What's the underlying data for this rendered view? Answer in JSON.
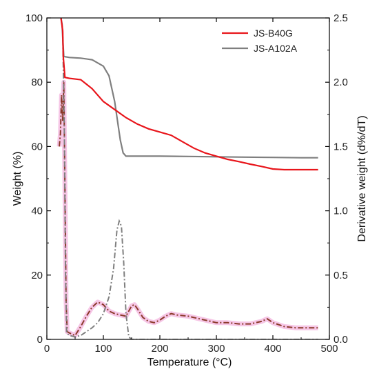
{
  "chart_data": {
    "type": "line",
    "title": "",
    "xlabel": "Temperature (°C)",
    "ylabel": "Weight (%)",
    "y2label": "Derivative weight (d%/dT)",
    "xlim": [
      0,
      500
    ],
    "ylim": [
      0,
      100
    ],
    "y2lim": [
      0,
      2.5
    ],
    "xticks": [
      "0",
      "100",
      "200",
      "300",
      "400",
      "500"
    ],
    "yticks": [
      "0",
      "20",
      "40",
      "60",
      "80",
      "100"
    ],
    "y2ticks": [
      "0.0",
      "0.5",
      "1.0",
      "1.5",
      "2.0",
      "2.5"
    ],
    "grid": false,
    "legend": "top-right",
    "series": [
      {
        "name": "JS-B40G",
        "axis": "left",
        "style": "solid",
        "color": "#e8151b",
        "x": [
          25,
          28,
          29,
          32,
          40,
          60,
          80,
          100,
          120,
          140,
          160,
          180,
          200,
          220,
          240,
          260,
          280,
          300,
          320,
          340,
          360,
          380,
          400,
          420,
          440,
          460,
          480
        ],
        "y": [
          100,
          96,
          88,
          81.5,
          81.2,
          80.8,
          78,
          74,
          71.5,
          69,
          67,
          65.5,
          64.5,
          63.5,
          61.5,
          59.5,
          58,
          57,
          56,
          55.3,
          54.5,
          53.8,
          53,
          52.8,
          52.8,
          52.8,
          52.8
        ]
      },
      {
        "name": "JS-A102A",
        "axis": "left",
        "style": "solid",
        "color": "#7f7f7f",
        "x": [
          25,
          27,
          28,
          30,
          40,
          60,
          80,
          100,
          110,
          120,
          125,
          130,
          135,
          140,
          145,
          160,
          200,
          250,
          300,
          350,
          400,
          450,
          480
        ],
        "y": [
          100,
          98,
          94,
          88,
          87.7,
          87.5,
          87,
          85,
          82,
          74,
          68,
          62,
          58,
          57,
          57,
          57,
          57,
          56.9,
          56.8,
          56.7,
          56.6,
          56.5,
          56.5
        ],
        "deriv_x": [
          25,
          28,
          31,
          33,
          35,
          40,
          50,
          60,
          70,
          80,
          90,
          100,
          110,
          118,
          124,
          128,
          132,
          136,
          140,
          145,
          150,
          200,
          300,
          400,
          480
        ],
        "deriv_y": [
          2.5,
          2.4,
          1.6,
          0.5,
          0.05,
          0.03,
          0.02,
          0.03,
          0.06,
          0.09,
          0.13,
          0.2,
          0.33,
          0.55,
          0.85,
          0.92,
          0.88,
          0.6,
          0.2,
          0.02,
          0.0,
          0.0,
          0.0,
          0.0,
          0.0
        ]
      },
      {
        "name": "",
        "axis": "right",
        "style": "dash-dot",
        "color": "#8b3a2a",
        "x": [
          22,
          24,
          26,
          28,
          30,
          32,
          34,
          36,
          40,
          50,
          60,
          70,
          80,
          90,
          100,
          110,
          120,
          130,
          140,
          150,
          155,
          160,
          170,
          180,
          190,
          200,
          210,
          220,
          230,
          250,
          270,
          290,
          300,
          320,
          340,
          360,
          380,
          390,
          400,
          420,
          440,
          460,
          480
        ],
        "y": [
          1.5,
          1.6,
          1.9,
          1.7,
          2.0,
          1.2,
          0.3,
          0.06,
          0.05,
          0.03,
          0.1,
          0.18,
          0.25,
          0.29,
          0.27,
          0.22,
          0.2,
          0.19,
          0.18,
          0.26,
          0.27,
          0.24,
          0.17,
          0.14,
          0.13,
          0.15,
          0.18,
          0.2,
          0.19,
          0.18,
          0.16,
          0.14,
          0.13,
          0.13,
          0.12,
          0.12,
          0.14,
          0.16,
          0.13,
          0.1,
          0.09,
          0.09,
          0.09
        ]
      }
    ]
  }
}
